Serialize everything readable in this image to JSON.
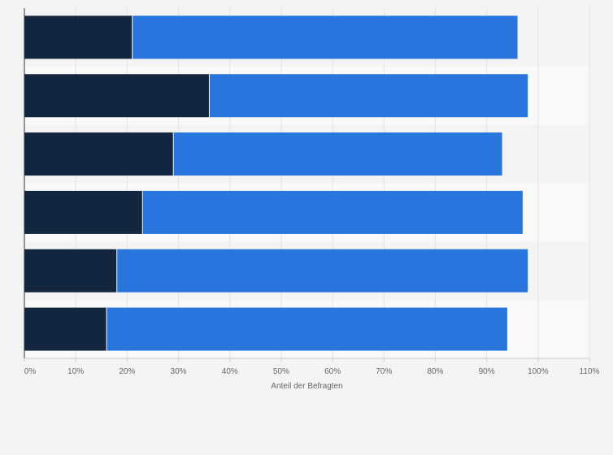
{
  "chart_data": {
    "type": "bar",
    "orientation": "horizontal",
    "stacked": true,
    "categories": [
      "",
      "",
      "",
      "",
      "",
      ""
    ],
    "series": [
      {
        "values": [
          21,
          36,
          29,
          23,
          18,
          16
        ]
      },
      {
        "values": [
          75,
          62,
          64,
          74,
          80,
          78
        ]
      }
    ],
    "title": "",
    "xlabel": "Anteil der Befragten",
    "ylabel": "",
    "xlim": [
      0,
      110
    ],
    "xticks": [
      0,
      10,
      20,
      30,
      40,
      50,
      60,
      70,
      80,
      90,
      100,
      110
    ],
    "xtick_labels": [
      "0%",
      "10%",
      "20%",
      "30%",
      "40%",
      "50%",
      "60%",
      "70%",
      "80%",
      "90%",
      "100%",
      "110%"
    ],
    "grid": true,
    "legend": "none",
    "colors": {
      "series": [
        "#12263f",
        "#2876dd"
      ],
      "background": "#f4f4f4",
      "band_alt": "#f9f9f9",
      "grid": "#e4e4e4",
      "axis": "#333333",
      "bar_separator": "#ffffff"
    }
  }
}
